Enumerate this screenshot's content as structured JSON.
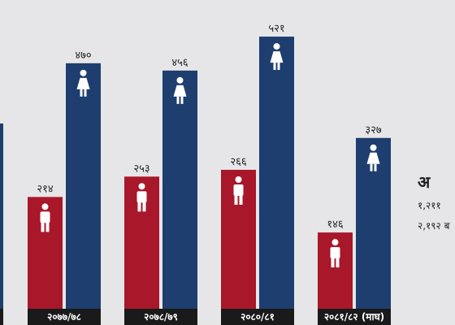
{
  "chart_data": {
    "type": "bar",
    "title": "",
    "xlabel": "",
    "ylabel": "",
    "ylim": [
      0,
      560
    ],
    "grid": false,
    "categories": [
      "२०७७/७८",
      "२०७८/७९",
      "२०८०/८१",
      "२०८१/८२ (माघ)"
    ],
    "series": [
      {
        "values": [
          214,
          253,
          266,
          146
        ],
        "value_labels": [
          "२१४",
          "२५३",
          "२६६",
          "१४६"
        ],
        "color": "#a8172a",
        "icon": "male-person-icon"
      },
      {
        "values": [
          470,
          456,
          521,
          327
        ],
        "value_labels": [
          "४७०",
          "४५६",
          "५२१",
          "३२७"
        ],
        "color": "#1d3e6e",
        "icon": "female-person-icon"
      }
    ],
    "category_label_bg": "#1a1a1a"
  },
  "side_panel": {
    "heading": "अ",
    "line1": "१,२११",
    "line2": "२,१९२ ब"
  }
}
